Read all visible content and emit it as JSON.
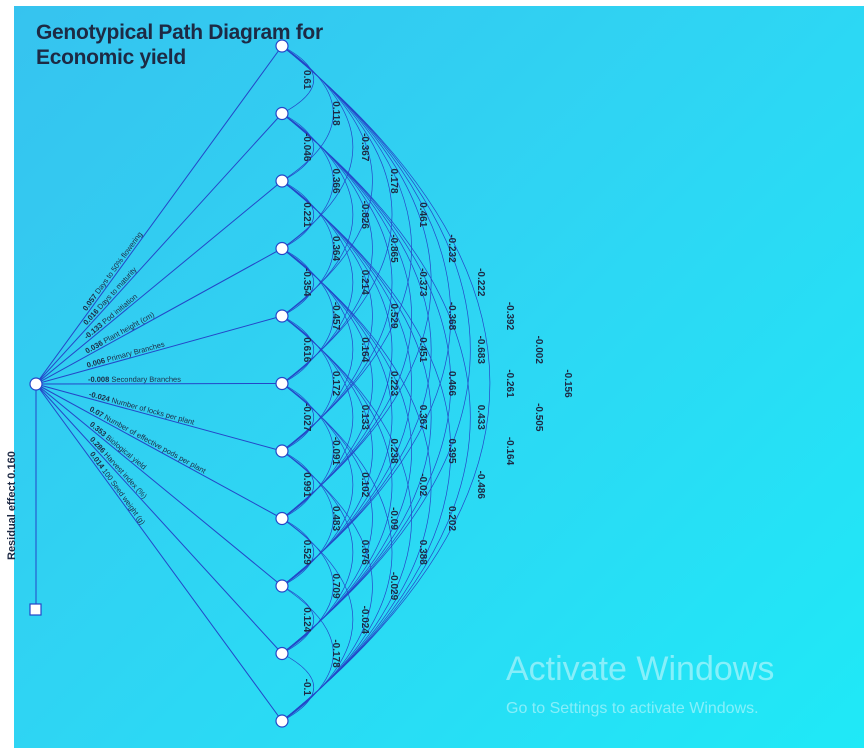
{
  "diagram": {
    "title_line1": "Genotypical Path Diagram for",
    "title_line2": "Economic yield",
    "residual_label": "Residual effect 0.160",
    "traits": [
      {
        "label": "Days to 50% flowering",
        "direct": "0.057"
      },
      {
        "label": "Days to maturity",
        "direct": "0.016"
      },
      {
        "label": "Pod initiation",
        "direct": "-0.133"
      },
      {
        "label": "Plant height (cm)",
        "direct": "0.036"
      },
      {
        "label": "Primary Branches",
        "direct": "0.006"
      },
      {
        "label": "Secondary Branches",
        "direct": "-0.008"
      },
      {
        "label": "Number of locks per plant",
        "direct": "-0.024"
      },
      {
        "label": "Number of effective pods per plant",
        "direct": "0.07"
      },
      {
        "label": "Biological yield",
        "direct": "0.353"
      },
      {
        "label": "Harvest index (%)",
        "direct": "0.286"
      },
      {
        "label": "100 Seed weight (g)",
        "direct": "0.014"
      }
    ],
    "correlations": [
      [
        "0.61",
        "-0.046",
        "0.221",
        "-0.354",
        "0.616",
        "-0.027",
        "0.991",
        "0.529",
        "0.124",
        "-0.1"
      ],
      [
        "0.118",
        "0.366",
        "0.364",
        "-0.457",
        "0.172",
        "-0.091",
        "0.483",
        "0.709",
        "-0.178"
      ],
      [
        "-0.367",
        "-0.826",
        "0.214",
        "0.164",
        "0.133",
        "0.102",
        "0.676",
        "-0.024"
      ],
      [
        "0.178",
        "-0.865",
        "0.529",
        "0.223",
        "0.238",
        "-0.09",
        "-0.029"
      ],
      [
        "0.461",
        "-0.373",
        "0.451",
        "0.367",
        "-0.02",
        "0.388"
      ],
      [
        "-0.232",
        "-0.368",
        "0.466",
        "0.395",
        "0.202"
      ],
      [
        "-0.222",
        "-0.683",
        "0.433",
        "-0.486"
      ],
      [
        "-0.392",
        "-0.261",
        "-0.164"
      ],
      [
        "-0.002",
        "-0.505"
      ],
      [
        "-0.156"
      ]
    ]
  },
  "watermark": {
    "line1": "Activate Windows",
    "line2": "Go to Settings to activate Windows."
  },
  "colors": {
    "line": "#2446c8",
    "text": "#1d2a44",
    "node_fill": "#ffffff"
  }
}
